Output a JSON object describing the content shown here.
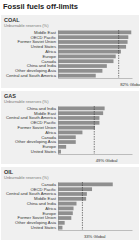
{
  "title": "Fossil fuels off-limits",
  "chart_data": [
    {
      "type": "bar",
      "orientation": "horizontal",
      "title": "COAL",
      "subtitle": "Unburnable reserves (%)",
      "categories": [
        "Middle East",
        "OECD Pacific",
        "Former Soviet Union",
        "United States",
        "Africa",
        "Europe",
        "Canada",
        "China and India",
        "Other developing Asia",
        "Central and South America"
      ],
      "values": [
        99,
        95,
        94,
        92,
        85,
        78,
        75,
        66,
        60,
        51
      ],
      "color": "#8f8f8f",
      "xlim": [
        0,
        100
      ],
      "tick_labels": "y",
      "reference": {
        "value": 82,
        "label": "82% Global"
      }
    },
    {
      "type": "bar",
      "orientation": "horizontal",
      "title": "GAS",
      "subtitle": "Unburnable reserves (%)",
      "categories": [
        "China and India",
        "Middle East",
        "Central and South America",
        "OECD Pacific",
        "Former Soviet Union",
        "Africa",
        "Canada",
        "Other developing Asia",
        "Europe",
        "United States"
      ],
      "values": [
        63,
        61,
        56,
        56,
        50,
        33,
        24,
        24,
        11,
        4
      ],
      "color": "#8f8f8f",
      "xlim": [
        0,
        100
      ],
      "tick_labels": "y",
      "reference": {
        "value": 49,
        "label": "49% Global"
      }
    },
    {
      "type": "bar",
      "orientation": "horizontal",
      "title": "OIL",
      "subtitle": "Unburnable reserves (%)",
      "categories": [
        "Canada",
        "OECD Pacific",
        "Central and South America",
        "Middle East",
        "China and India",
        "Africa",
        "Europe",
        "Former Soviet Union",
        "Other developing Asia",
        "United States"
      ],
      "values": [
        74,
        46,
        39,
        38,
        25,
        21,
        20,
        18,
        9,
        6
      ],
      "color": "#8f8f8f",
      "xlim": [
        0,
        100
      ],
      "tick_labels": "y",
      "reference": {
        "value": 33,
        "label": "33% Global"
      }
    }
  ]
}
